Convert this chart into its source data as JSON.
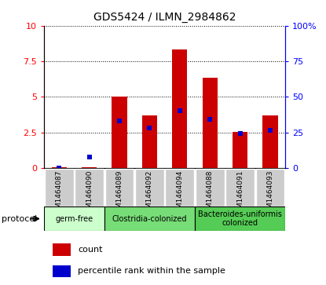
{
  "title": "GDS5424 / ILMN_2984862",
  "samples": [
    "GSM1464087",
    "GSM1464090",
    "GSM1464089",
    "GSM1464092",
    "GSM1464094",
    "GSM1464088",
    "GSM1464091",
    "GSM1464093"
  ],
  "count_values": [
    0.05,
    0.05,
    5.05,
    3.7,
    8.35,
    6.35,
    2.55,
    3.7
  ],
  "percentile_values": [
    0.0,
    0.8,
    3.3,
    2.8,
    4.05,
    3.4,
    2.45,
    2.65
  ],
  "left_ylim": [
    0,
    10
  ],
  "right_ylim": [
    0,
    100
  ],
  "left_yticks": [
    0,
    2.5,
    5.0,
    7.5,
    10
  ],
  "left_yticklabels": [
    "0",
    "2.5",
    "5",
    "7.5",
    "10"
  ],
  "right_yticks": [
    0,
    25,
    50,
    75,
    100
  ],
  "right_yticklabels": [
    "0",
    "25",
    "50",
    "75",
    "100%"
  ],
  "bar_color": "#cc0000",
  "percentile_color": "#0000cc",
  "protocols": [
    {
      "label": "germ-free",
      "start": 0,
      "end": 2,
      "color": "#ccffcc"
    },
    {
      "label": "Clostridia-colonized",
      "start": 2,
      "end": 5,
      "color": "#77dd77"
    },
    {
      "label": "Bacteroides-uniformis\ncolonized",
      "start": 5,
      "end": 8,
      "color": "#55cc55"
    }
  ],
  "tick_bg_color": "#cccccc",
  "protocol_label": "protocol",
  "legend_count_label": "count",
  "legend_percentile_label": "percentile rank within the sample",
  "bar_width": 0.5
}
